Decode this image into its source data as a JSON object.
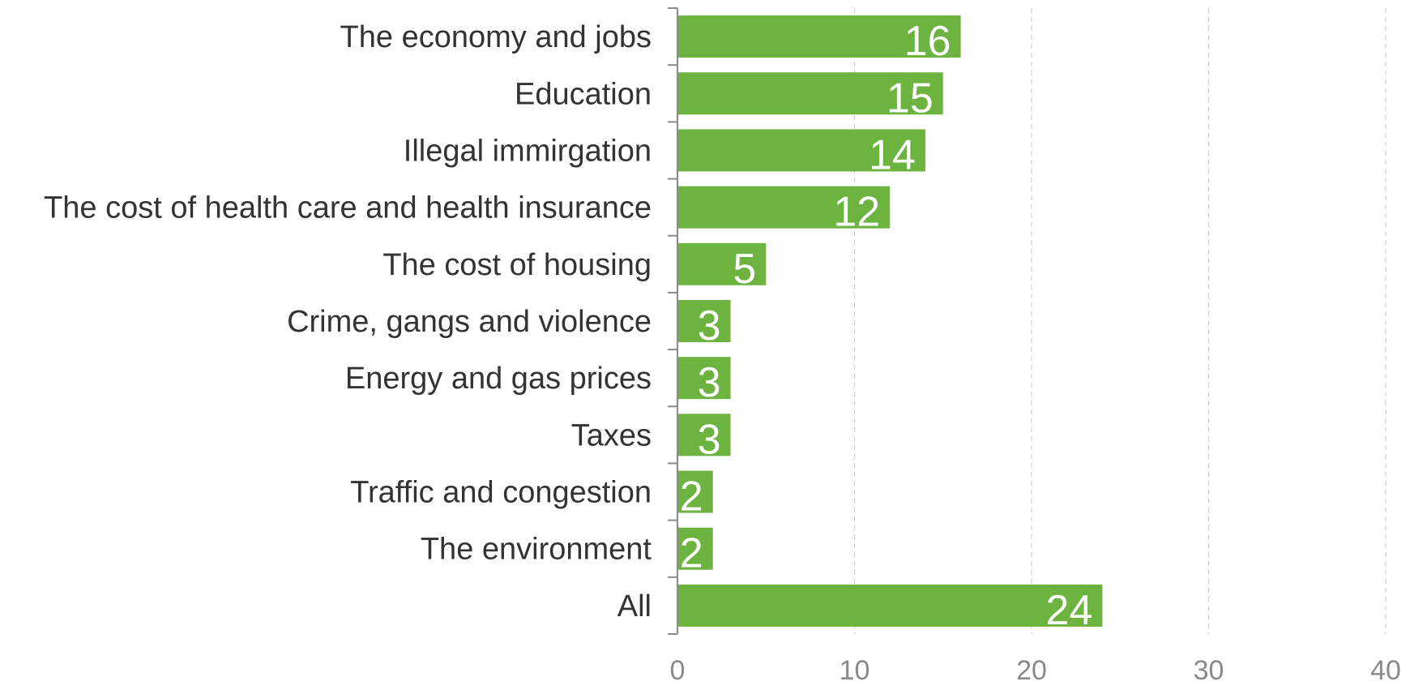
{
  "chart_data": {
    "type": "bar",
    "orientation": "horizontal",
    "title": "",
    "xlabel": "",
    "ylabel": "",
    "categories": [
      "The economy and jobs",
      "Education",
      "Illegal immirgation",
      "The cost of health care and health insurance",
      "The cost of housing",
      "Crime, gangs and violence",
      "Energy and gas prices",
      "Taxes",
      "Traffic and congestion",
      "The environment",
      "All"
    ],
    "values": [
      16,
      15,
      14,
      12,
      5,
      3,
      3,
      3,
      2,
      2,
      24
    ],
    "data_labels": [
      "16",
      "15",
      "14",
      "12",
      "5",
      "3",
      "3",
      "3",
      "2",
      "2",
      "24"
    ],
    "xlim": [
      0,
      40
    ],
    "xticks": [
      0,
      10,
      20,
      30,
      40
    ],
    "xtick_labels": [
      "0",
      "10",
      "20",
      "30",
      "40"
    ],
    "grid": "vertical dashed",
    "legend": "none",
    "colors": {
      "bar": "#6db33f",
      "gridline": "#d0d0d0",
      "axis": "#8a8a8a",
      "category_text": "#333333",
      "tick_text": "#8a8a8a",
      "data_label_text": "#ffffff"
    }
  }
}
